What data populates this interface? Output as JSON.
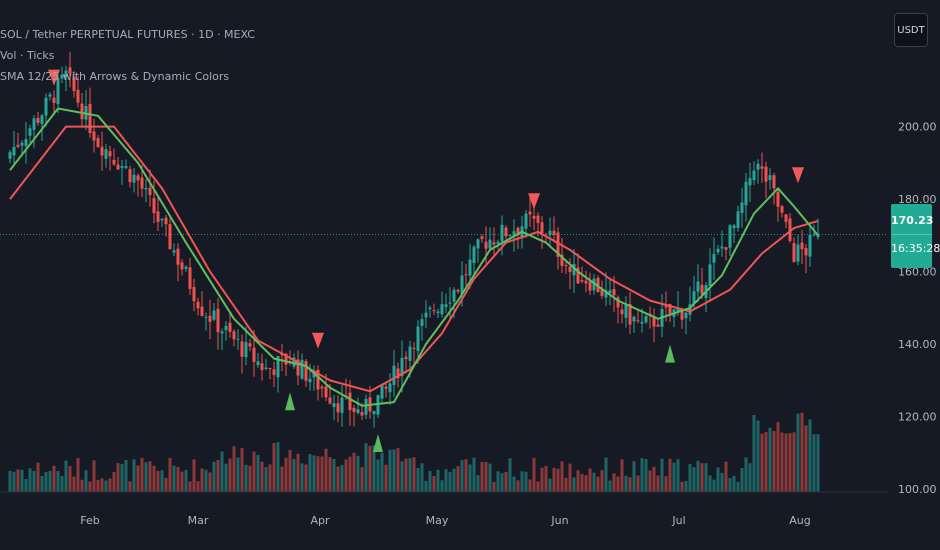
{
  "legend": {
    "symbol": "SOL / Tether PERPETUAL FUTURES · 1D · MEXC",
    "volume": "Vol · Ticks",
    "indicator": "SMA 12/25 with Arrows & Dynamic Colors"
  },
  "quote_currency": "USDT",
  "last_price": "170.23",
  "countdown": "16:35:28",
  "colors": {
    "background": "#161a25",
    "up": "#26a69a",
    "down": "#ef5350",
    "sma_green": "#5fbf5f",
    "sma_red": "#f05454",
    "arrow_up": "#5cb85c",
    "arrow_down": "#f05a5a",
    "price_line": "#22ab94"
  },
  "chart_data": {
    "type": "candlestick",
    "yaxis": {
      "ticks": [
        "200.00",
        "180.00",
        "160.00",
        "140.00",
        "120.00",
        "100.00"
      ],
      "range": [
        97,
        217
      ]
    },
    "xaxis": {
      "ticks": [
        "Feb",
        "Mar",
        "Apr",
        "May",
        "Jun",
        "Jul",
        "Aug"
      ]
    },
    "anchors": [
      {
        "day": 0,
        "close": 193
      },
      {
        "day": 8,
        "close": 204
      },
      {
        "day": 14,
        "close": 214
      },
      {
        "day": 22,
        "close": 196
      },
      {
        "day": 32,
        "close": 185
      },
      {
        "day": 40,
        "close": 168
      },
      {
        "day": 48,
        "close": 150
      },
      {
        "day": 56,
        "close": 141
      },
      {
        "day": 64,
        "close": 133
      },
      {
        "day": 70,
        "close": 136
      },
      {
        "day": 76,
        "close": 130
      },
      {
        "day": 82,
        "close": 124
      },
      {
        "day": 88,
        "close": 121
      },
      {
        "day": 94,
        "close": 127
      },
      {
        "day": 100,
        "close": 140
      },
      {
        "day": 106,
        "close": 150
      },
      {
        "day": 112,
        "close": 156
      },
      {
        "day": 118,
        "close": 168
      },
      {
        "day": 124,
        "close": 171
      },
      {
        "day": 130,
        "close": 174
      },
      {
        "day": 135,
        "close": 170
      },
      {
        "day": 140,
        "close": 160
      },
      {
        "day": 146,
        "close": 157
      },
      {
        "day": 152,
        "close": 150
      },
      {
        "day": 158,
        "close": 145
      },
      {
        "day": 164,
        "close": 148
      },
      {
        "day": 170,
        "close": 150
      },
      {
        "day": 176,
        "close": 163
      },
      {
        "day": 182,
        "close": 174
      },
      {
        "day": 186,
        "close": 190
      },
      {
        "day": 190,
        "close": 184
      },
      {
        "day": 193,
        "close": 175
      },
      {
        "day": 196,
        "close": 165
      },
      {
        "day": 199,
        "close": 166
      },
      {
        "day": 202,
        "close": 170.23
      }
    ],
    "sma_fast": [
      {
        "day": 0,
        "value": 188
      },
      {
        "day": 12,
        "value": 205
      },
      {
        "day": 22,
        "value": 203
      },
      {
        "day": 32,
        "value": 190
      },
      {
        "day": 44,
        "value": 168
      },
      {
        "day": 56,
        "value": 147
      },
      {
        "day": 66,
        "value": 136
      },
      {
        "day": 74,
        "value": 134
      },
      {
        "day": 80,
        "value": 128
      },
      {
        "day": 88,
        "value": 123
      },
      {
        "day": 96,
        "value": 124
      },
      {
        "day": 104,
        "value": 140
      },
      {
        "day": 112,
        "value": 152
      },
      {
        "day": 120,
        "value": 166
      },
      {
        "day": 128,
        "value": 171
      },
      {
        "day": 134,
        "value": 168
      },
      {
        "day": 142,
        "value": 160
      },
      {
        "day": 152,
        "value": 152
      },
      {
        "day": 162,
        "value": 147
      },
      {
        "day": 170,
        "value": 150
      },
      {
        "day": 178,
        "value": 159
      },
      {
        "day": 186,
        "value": 176
      },
      {
        "day": 192,
        "value": 183
      },
      {
        "day": 196,
        "value": 178
      },
      {
        "day": 202,
        "value": 170
      }
    ],
    "sma_slow": [
      {
        "day": 0,
        "value": 180
      },
      {
        "day": 14,
        "value": 200
      },
      {
        "day": 26,
        "value": 200
      },
      {
        "day": 38,
        "value": 183
      },
      {
        "day": 50,
        "value": 160
      },
      {
        "day": 62,
        "value": 141
      },
      {
        "day": 72,
        "value": 135
      },
      {
        "day": 80,
        "value": 130
      },
      {
        "day": 90,
        "value": 127
      },
      {
        "day": 100,
        "value": 133
      },
      {
        "day": 108,
        "value": 143
      },
      {
        "day": 116,
        "value": 158
      },
      {
        "day": 124,
        "value": 168
      },
      {
        "day": 132,
        "value": 171
      },
      {
        "day": 140,
        "value": 166
      },
      {
        "day": 150,
        "value": 158
      },
      {
        "day": 160,
        "value": 152
      },
      {
        "day": 170,
        "value": 149
      },
      {
        "day": 180,
        "value": 155
      },
      {
        "day": 188,
        "value": 165
      },
      {
        "day": 196,
        "value": 172
      },
      {
        "day": 202,
        "value": 174
      }
    ],
    "signals": [
      {
        "day": 11,
        "type": "sell"
      },
      {
        "day": 70,
        "type": "buy"
      },
      {
        "day": 77,
        "type": "sell"
      },
      {
        "day": 92,
        "type": "buy"
      },
      {
        "day": 131,
        "type": "sell"
      },
      {
        "day": 165,
        "type": "buy"
      },
      {
        "day": 197,
        "type": "sell"
      }
    ]
  }
}
